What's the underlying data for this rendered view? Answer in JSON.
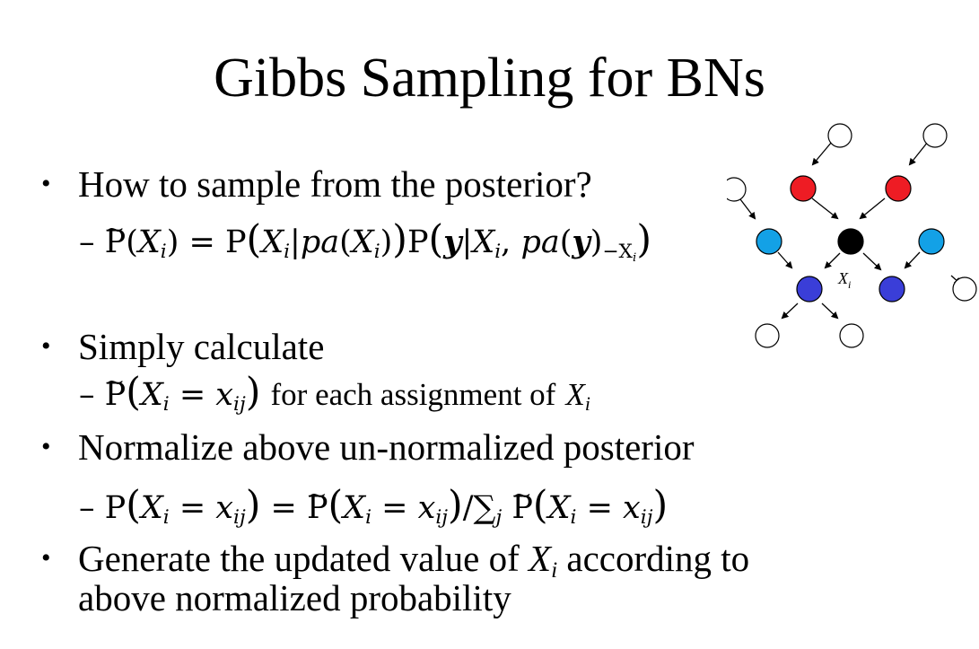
{
  "title": "Gibbs Sampling for BNs",
  "bullets": [
    {
      "symbol": "•",
      "text": "How to sample from the posterior?"
    },
    {
      "symbol": "•",
      "text": "Simply calculate"
    },
    {
      "symbol": "•",
      "text": "Normalize above un-normalized posterior"
    },
    {
      "symbol": "•",
      "line1": "Generate the updated value of",
      "var": "X",
      "var_sub": "i",
      "line1_end": "according to",
      "line2": "above normalized probability"
    }
  ],
  "sub_items": {
    "dash": "–",
    "eq1": {
      "P": "P",
      "X": "X",
      "i": "i",
      "eq": "=",
      "pa": "pa",
      "y": "y",
      "minus_sub": "−X"
    },
    "eq2": {
      "text": "for each assignment of",
      "X": "X",
      "i": "i",
      "x": "x",
      "ij": "ij"
    },
    "eq3": {
      "sum": "∑",
      "j": "j",
      "slash": "/"
    }
  },
  "diagram": {
    "node_label": "X",
    "node_label_sub": "i",
    "colors": {
      "red": "#ee1c24",
      "light_blue": "#13a1e6",
      "dark_blue": "#3a3ed8",
      "black": "#000000",
      "white": "#ffffff"
    }
  }
}
